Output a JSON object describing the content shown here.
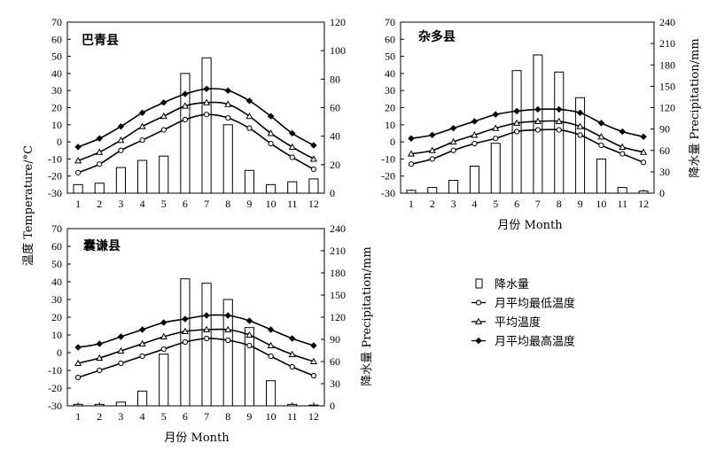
{
  "figure": {
    "left_axis_label": "温度 Temperature/°C",
    "x_axis_label": "月份 Month",
    "right_axis_label": "降水量 Precipitation/mm"
  },
  "legend": {
    "items": [
      {
        "label": "降水量",
        "marker": "bar"
      },
      {
        "label": "月平均最低温度",
        "marker": "circle"
      },
      {
        "label": "平均温度",
        "marker": "triangle"
      },
      {
        "label": "月平均最高温度",
        "marker": "diamond"
      }
    ]
  },
  "chart_data": [
    {
      "type": "bar+line",
      "title": "巴青县",
      "categories": [
        "1",
        "2",
        "3",
        "4",
        "5",
        "6",
        "7",
        "8",
        "9",
        "10",
        "11",
        "12"
      ],
      "y_left": {
        "range": [
          -30,
          70
        ],
        "ticks": [
          -30,
          -20,
          -10,
          0,
          10,
          20,
          30,
          40,
          50,
          60,
          70
        ]
      },
      "y_right": {
        "range": [
          0,
          120
        ],
        "ticks": [
          0,
          20,
          40,
          60,
          80,
          100,
          120
        ]
      },
      "series": [
        {
          "name": "降水量",
          "kind": "bar",
          "axis": "right",
          "values": [
            6,
            7,
            18,
            23,
            26,
            84,
            95,
            48,
            16,
            6,
            8,
            10
          ]
        },
        {
          "name": "月平均最低温度",
          "kind": "line",
          "marker": "circle",
          "axis": "left",
          "values": [
            -18,
            -13,
            -5,
            1,
            7,
            13,
            16,
            14,
            8,
            -1,
            -9,
            -16
          ]
        },
        {
          "name": "平均温度",
          "kind": "line",
          "marker": "triangle",
          "axis": "left",
          "values": [
            -11,
            -6,
            1,
            9,
            15,
            21,
            23,
            22,
            15,
            5,
            -3,
            -10
          ]
        },
        {
          "name": "月平均最高温度",
          "kind": "line",
          "marker": "diamond",
          "axis": "left",
          "values": [
            -3,
            2,
            9,
            17,
            23,
            28,
            31,
            30,
            24,
            15,
            5,
            -2
          ]
        }
      ]
    },
    {
      "type": "bar+line",
      "title": "杂多县",
      "categories": [
        "1",
        "2",
        "3",
        "4",
        "5",
        "6",
        "7",
        "8",
        "9",
        "10",
        "11",
        "12"
      ],
      "y_left": {
        "range": [
          -30,
          70
        ],
        "ticks": [
          -30,
          -20,
          -10,
          0,
          10,
          20,
          30,
          40,
          50,
          60,
          70
        ]
      },
      "y_right": {
        "range": [
          0,
          240
        ],
        "ticks": [
          0,
          30,
          60,
          90,
          120,
          150,
          180,
          210,
          240
        ]
      },
      "series": [
        {
          "name": "降水量",
          "kind": "bar",
          "axis": "right",
          "values": [
            4,
            8,
            18,
            38,
            70,
            172,
            194,
            170,
            134,
            48,
            8,
            3
          ]
        },
        {
          "name": "月平均最低温度",
          "kind": "line",
          "marker": "circle",
          "axis": "left",
          "values": [
            -13,
            -10,
            -5,
            -1,
            2,
            6,
            7,
            7,
            4,
            -2,
            -7,
            -12
          ]
        },
        {
          "name": "平均温度",
          "kind": "line",
          "marker": "triangle",
          "axis": "left",
          "values": [
            -7,
            -5,
            0,
            4,
            8,
            11,
            12,
            12,
            9,
            3,
            -3,
            -6
          ]
        },
        {
          "name": "月平均最高温度",
          "kind": "line",
          "marker": "diamond",
          "axis": "left",
          "values": [
            2,
            4,
            8,
            12,
            16,
            18,
            19,
            19,
            17,
            11,
            6,
            3
          ]
        }
      ]
    },
    {
      "type": "bar+line",
      "title": "囊谦县",
      "categories": [
        "1",
        "2",
        "3",
        "4",
        "5",
        "6",
        "7",
        "8",
        "9",
        "10",
        "11",
        "12"
      ],
      "y_left": {
        "range": [
          -30,
          70
        ],
        "ticks": [
          -30,
          -20,
          -10,
          0,
          10,
          20,
          30,
          40,
          50,
          60,
          70
        ]
      },
      "y_right": {
        "range": [
          0,
          240
        ],
        "ticks": [
          0,
          30,
          60,
          90,
          120,
          150,
          180,
          210,
          240
        ]
      },
      "series": [
        {
          "name": "降水量",
          "kind": "bar",
          "axis": "right",
          "values": [
            2,
            2,
            5,
            20,
            70,
            172,
            166,
            144,
            106,
            34,
            2,
            1
          ]
        },
        {
          "name": "月平均最低温度",
          "kind": "line",
          "marker": "circle",
          "axis": "left",
          "values": [
            -14,
            -10,
            -6,
            -2,
            2,
            6,
            8,
            7,
            4,
            -2,
            -8,
            -13
          ]
        },
        {
          "name": "平均温度",
          "kind": "line",
          "marker": "triangle",
          "axis": "left",
          "values": [
            -6,
            -3,
            1,
            5,
            9,
            12,
            13,
            13,
            10,
            4,
            -1,
            -5
          ]
        },
        {
          "name": "月平均最高温度",
          "kind": "line",
          "marker": "diamond",
          "axis": "left",
          "values": [
            3,
            5,
            9,
            13,
            17,
            19,
            21,
            21,
            18,
            13,
            8,
            4
          ]
        }
      ]
    }
  ]
}
